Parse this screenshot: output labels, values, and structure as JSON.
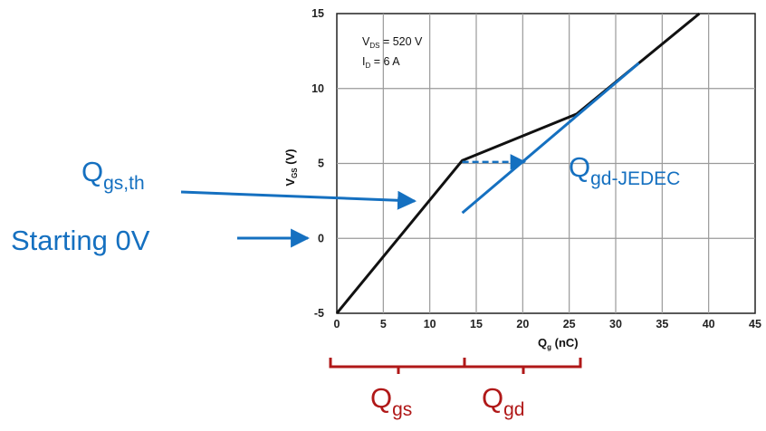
{
  "chart_data": {
    "type": "line",
    "xlabel": {
      "main": "Q",
      "sub": "g",
      "rest": " (nC)"
    },
    "ylabel": {
      "main": "V",
      "sub": "GS",
      "rest": " (V)"
    },
    "xlim": [
      0,
      45
    ],
    "ylim": [
      -5,
      15
    ],
    "x_ticks": [
      "0",
      "5",
      "10",
      "15",
      "20",
      "25",
      "30",
      "35",
      "40",
      "45"
    ],
    "y_ticks": [
      "-5",
      "0",
      "5",
      "10",
      "15"
    ],
    "grid": true,
    "conditions": [
      {
        "main": "V",
        "sub": "DS",
        "rest": " = 520 V"
      },
      {
        "main": "I",
        "sub": "D",
        "rest": " = 6 A"
      }
    ],
    "series": [
      {
        "color": "#111111",
        "points": [
          [
            0,
            -5
          ],
          [
            13.5,
            5.2
          ],
          [
            25.8,
            8.3
          ],
          [
            39,
            15
          ]
        ]
      },
      {
        "color": "#1570c0",
        "points": [
          [
            13.5,
            1.7
          ],
          [
            32.5,
            11.7
          ]
        ]
      }
    ],
    "dashed_arrow": {
      "from": [
        13.5,
        5.1
      ],
      "to": [
        20.2,
        5.1
      ],
      "color": "#1570c0"
    }
  },
  "annotations": {
    "qgs_th": {
      "main": "Q",
      "sub": "gs,th"
    },
    "starting": "Starting 0V",
    "qgd_jedec": {
      "main": "Q",
      "sub": "gd-JEDEC"
    },
    "qgs": {
      "main": "Q",
      "sub": "gs"
    },
    "qgd": {
      "main": "Q",
      "sub": "gd"
    }
  },
  "colors": {
    "blue": "#1570c0",
    "red": "#b01818",
    "curve": "#111111",
    "grid": "#9a9a9a"
  }
}
